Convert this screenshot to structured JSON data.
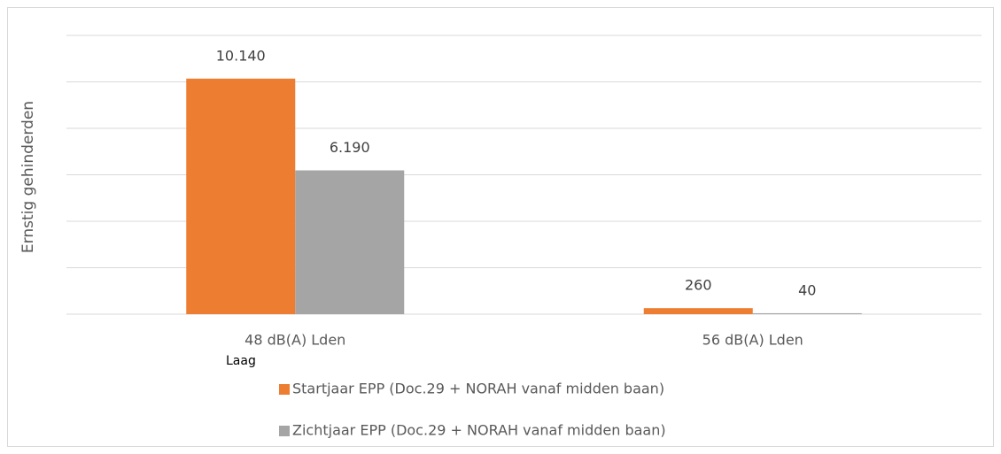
{
  "chart_data": {
    "type": "bar",
    "y_label": "Ernstig gehinderden",
    "categories": [
      "48 dB(A) Lden",
      "56 dB(A) Lden"
    ],
    "annotation": "Laag",
    "series": [
      {
        "name": "Startjaar EPP (Doc.29 + NORAH vanaf midden baan)",
        "color": "#ed7d31",
        "values": [
          10140,
          260
        ],
        "value_labels": [
          "10.140",
          "260"
        ]
      },
      {
        "name": "Zichtjaar EPP (Doc.29 + NORAH vanaf midden baan)",
        "color": "#a5a5a5",
        "values": [
          6190,
          40
        ],
        "value_labels": [
          "6.190",
          "40"
        ]
      }
    ],
    "ylim": [
      0,
      12000
    ],
    "yticks": [
      0,
      2000,
      4000,
      6000,
      8000,
      10000,
      12000
    ],
    "grid": true,
    "legend": "bottom"
  }
}
